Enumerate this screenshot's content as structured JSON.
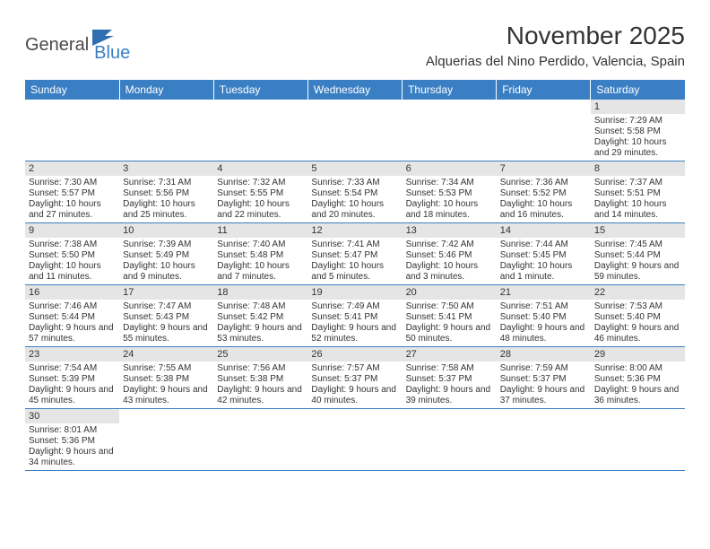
{
  "logo": {
    "word1": "General",
    "word2": "Blue"
  },
  "title": "November 2025",
  "location": "Alquerias del Nino Perdido, Valencia, Spain",
  "colors": {
    "header_bg": "#3a7fc4",
    "header_text": "#ffffff",
    "daynum_bg": "#e5e5e5",
    "border": "#3a7fc4",
    "text": "#333333"
  },
  "day_headers": [
    "Sunday",
    "Monday",
    "Tuesday",
    "Wednesday",
    "Thursday",
    "Friday",
    "Saturday"
  ],
  "weeks": [
    [
      null,
      null,
      null,
      null,
      null,
      null,
      {
        "n": "1",
        "sr": "Sunrise: 7:29 AM",
        "ss": "Sunset: 5:58 PM",
        "dl": "Daylight: 10 hours and 29 minutes."
      }
    ],
    [
      {
        "n": "2",
        "sr": "Sunrise: 7:30 AM",
        "ss": "Sunset: 5:57 PM",
        "dl": "Daylight: 10 hours and 27 minutes."
      },
      {
        "n": "3",
        "sr": "Sunrise: 7:31 AM",
        "ss": "Sunset: 5:56 PM",
        "dl": "Daylight: 10 hours and 25 minutes."
      },
      {
        "n": "4",
        "sr": "Sunrise: 7:32 AM",
        "ss": "Sunset: 5:55 PM",
        "dl": "Daylight: 10 hours and 22 minutes."
      },
      {
        "n": "5",
        "sr": "Sunrise: 7:33 AM",
        "ss": "Sunset: 5:54 PM",
        "dl": "Daylight: 10 hours and 20 minutes."
      },
      {
        "n": "6",
        "sr": "Sunrise: 7:34 AM",
        "ss": "Sunset: 5:53 PM",
        "dl": "Daylight: 10 hours and 18 minutes."
      },
      {
        "n": "7",
        "sr": "Sunrise: 7:36 AM",
        "ss": "Sunset: 5:52 PM",
        "dl": "Daylight: 10 hours and 16 minutes."
      },
      {
        "n": "8",
        "sr": "Sunrise: 7:37 AM",
        "ss": "Sunset: 5:51 PM",
        "dl": "Daylight: 10 hours and 14 minutes."
      }
    ],
    [
      {
        "n": "9",
        "sr": "Sunrise: 7:38 AM",
        "ss": "Sunset: 5:50 PM",
        "dl": "Daylight: 10 hours and 11 minutes."
      },
      {
        "n": "10",
        "sr": "Sunrise: 7:39 AM",
        "ss": "Sunset: 5:49 PM",
        "dl": "Daylight: 10 hours and 9 minutes."
      },
      {
        "n": "11",
        "sr": "Sunrise: 7:40 AM",
        "ss": "Sunset: 5:48 PM",
        "dl": "Daylight: 10 hours and 7 minutes."
      },
      {
        "n": "12",
        "sr": "Sunrise: 7:41 AM",
        "ss": "Sunset: 5:47 PM",
        "dl": "Daylight: 10 hours and 5 minutes."
      },
      {
        "n": "13",
        "sr": "Sunrise: 7:42 AM",
        "ss": "Sunset: 5:46 PM",
        "dl": "Daylight: 10 hours and 3 minutes."
      },
      {
        "n": "14",
        "sr": "Sunrise: 7:44 AM",
        "ss": "Sunset: 5:45 PM",
        "dl": "Daylight: 10 hours and 1 minute."
      },
      {
        "n": "15",
        "sr": "Sunrise: 7:45 AM",
        "ss": "Sunset: 5:44 PM",
        "dl": "Daylight: 9 hours and 59 minutes."
      }
    ],
    [
      {
        "n": "16",
        "sr": "Sunrise: 7:46 AM",
        "ss": "Sunset: 5:44 PM",
        "dl": "Daylight: 9 hours and 57 minutes."
      },
      {
        "n": "17",
        "sr": "Sunrise: 7:47 AM",
        "ss": "Sunset: 5:43 PM",
        "dl": "Daylight: 9 hours and 55 minutes."
      },
      {
        "n": "18",
        "sr": "Sunrise: 7:48 AM",
        "ss": "Sunset: 5:42 PM",
        "dl": "Daylight: 9 hours and 53 minutes."
      },
      {
        "n": "19",
        "sr": "Sunrise: 7:49 AM",
        "ss": "Sunset: 5:41 PM",
        "dl": "Daylight: 9 hours and 52 minutes."
      },
      {
        "n": "20",
        "sr": "Sunrise: 7:50 AM",
        "ss": "Sunset: 5:41 PM",
        "dl": "Daylight: 9 hours and 50 minutes."
      },
      {
        "n": "21",
        "sr": "Sunrise: 7:51 AM",
        "ss": "Sunset: 5:40 PM",
        "dl": "Daylight: 9 hours and 48 minutes."
      },
      {
        "n": "22",
        "sr": "Sunrise: 7:53 AM",
        "ss": "Sunset: 5:40 PM",
        "dl": "Daylight: 9 hours and 46 minutes."
      }
    ],
    [
      {
        "n": "23",
        "sr": "Sunrise: 7:54 AM",
        "ss": "Sunset: 5:39 PM",
        "dl": "Daylight: 9 hours and 45 minutes."
      },
      {
        "n": "24",
        "sr": "Sunrise: 7:55 AM",
        "ss": "Sunset: 5:38 PM",
        "dl": "Daylight: 9 hours and 43 minutes."
      },
      {
        "n": "25",
        "sr": "Sunrise: 7:56 AM",
        "ss": "Sunset: 5:38 PM",
        "dl": "Daylight: 9 hours and 42 minutes."
      },
      {
        "n": "26",
        "sr": "Sunrise: 7:57 AM",
        "ss": "Sunset: 5:37 PM",
        "dl": "Daylight: 9 hours and 40 minutes."
      },
      {
        "n": "27",
        "sr": "Sunrise: 7:58 AM",
        "ss": "Sunset: 5:37 PM",
        "dl": "Daylight: 9 hours and 39 minutes."
      },
      {
        "n": "28",
        "sr": "Sunrise: 7:59 AM",
        "ss": "Sunset: 5:37 PM",
        "dl": "Daylight: 9 hours and 37 minutes."
      },
      {
        "n": "29",
        "sr": "Sunrise: 8:00 AM",
        "ss": "Sunset: 5:36 PM",
        "dl": "Daylight: 9 hours and 36 minutes."
      }
    ],
    [
      {
        "n": "30",
        "sr": "Sunrise: 8:01 AM",
        "ss": "Sunset: 5:36 PM",
        "dl": "Daylight: 9 hours and 34 minutes."
      },
      null,
      null,
      null,
      null,
      null,
      null
    ]
  ]
}
